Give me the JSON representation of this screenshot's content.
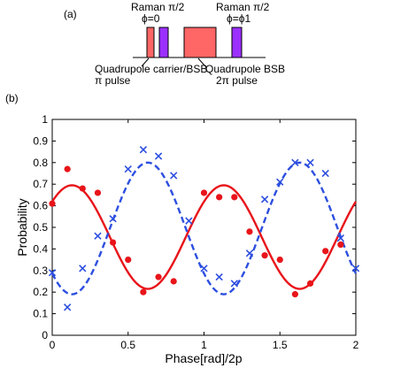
{
  "panel_a": {
    "label": "(a)",
    "pulse1_label_line1": "Raman π/2",
    "pulse1_label_line2": "ϕ=0",
    "pulse2_label_line1": "Raman π/2",
    "pulse2_label_line2": "ϕ=ϕ1",
    "quad_carrier_line1": "Quadrupole carrier/BSB",
    "quad_carrier_line2": "π pulse",
    "quad_bsb_line1": "Quadrupole BSB",
    "quad_bsb_line2": "2π pulse",
    "colors": {
      "raman": "#9b30ff",
      "quadrupole": "#ff6666",
      "outline": "#000000"
    }
  },
  "panel_b": {
    "label": "(b)"
  },
  "chart_data": {
    "type": "scatter",
    "xlabel": "Phase[rad]/2p",
    "ylabel": "Probability",
    "xlim": [
      0,
      2
    ],
    "ylim": [
      0,
      1
    ],
    "xticks": [
      "0",
      "0.5",
      "1",
      "1.5",
      "2"
    ],
    "xtick_values": [
      0,
      0.5,
      1,
      1.5,
      2
    ],
    "yticks": [
      "0",
      "0.1",
      "0.2",
      "0.3",
      "0.4",
      "0.5",
      "0.6",
      "0.7",
      "0.8",
      "0.9",
      "1"
    ],
    "ytick_values": [
      0,
      0.1,
      0.2,
      0.3,
      0.4,
      0.5,
      0.6,
      0.7,
      0.8,
      0.9,
      1.0
    ],
    "grid": false,
    "series": [
      {
        "marker": "circle",
        "color": "#e8141a",
        "points": [
          [
            0.0,
            0.61
          ],
          [
            0.1,
            0.77
          ],
          [
            0.2,
            0.68
          ],
          [
            0.3,
            0.66
          ],
          [
            0.4,
            0.43
          ],
          [
            0.5,
            0.35
          ],
          [
            0.6,
            0.2
          ],
          [
            0.7,
            0.27
          ],
          [
            0.8,
            0.25
          ],
          [
            1.0,
            0.66
          ],
          [
            1.1,
            0.64
          ],
          [
            1.2,
            0.64
          ],
          [
            1.3,
            0.48
          ],
          [
            1.4,
            0.37
          ],
          [
            1.5,
            0.35
          ],
          [
            1.6,
            0.19
          ],
          [
            1.7,
            0.24
          ],
          [
            1.8,
            0.39
          ],
          [
            1.9,
            0.42
          ]
        ]
      },
      {
        "marker": "x",
        "color": "#2d4fe0",
        "points": [
          [
            0.0,
            0.29
          ],
          [
            0.1,
            0.13
          ],
          [
            0.2,
            0.31
          ],
          [
            0.3,
            0.46
          ],
          [
            0.4,
            0.54
          ],
          [
            0.5,
            0.77
          ],
          [
            0.6,
            0.86
          ],
          [
            0.7,
            0.83
          ],
          [
            0.8,
            0.74
          ],
          [
            0.9,
            0.53
          ],
          [
            1.0,
            0.31
          ],
          [
            1.1,
            0.27
          ],
          [
            1.2,
            0.24
          ],
          [
            1.3,
            0.38
          ],
          [
            1.4,
            0.63
          ],
          [
            1.5,
            0.71
          ],
          [
            1.6,
            0.8
          ],
          [
            1.7,
            0.8
          ],
          [
            1.8,
            0.75
          ],
          [
            1.9,
            0.45
          ],
          [
            2.0,
            0.31
          ]
        ]
      }
    ],
    "fits": [
      {
        "style": "solid",
        "color": "#e8141a",
        "offset": 0.455,
        "amplitude": 0.24,
        "phase_center": 0.13
      },
      {
        "style": "dashed",
        "color": "#2d4fe0",
        "offset": 0.495,
        "amplitude": 0.305,
        "phase_center": 0.63
      }
    ]
  }
}
